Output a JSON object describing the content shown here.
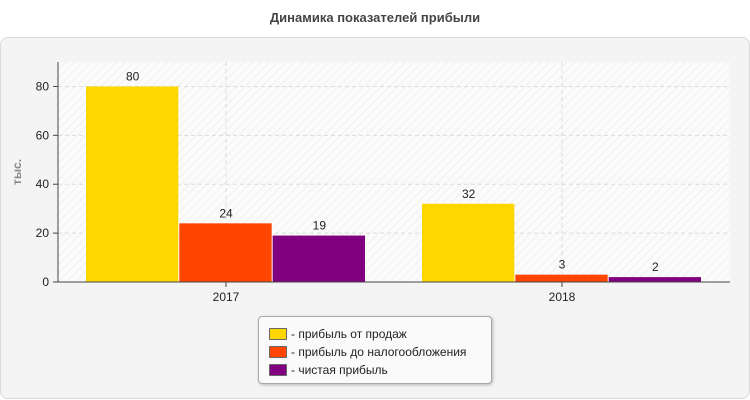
{
  "title": "Динамика показателей прибыли",
  "chart_data": {
    "type": "bar",
    "categories": [
      "2017",
      "2018"
    ],
    "series": [
      {
        "name": "прибыль от продаж",
        "values": [
          80,
          32
        ],
        "color": "#ffd700"
      },
      {
        "name": "прибыль до налогообложения",
        "values": [
          24,
          3
        ],
        "color": "#ff4500"
      },
      {
        "name": "чистая прибыль",
        "values": [
          19,
          2
        ],
        "color": "#800080"
      }
    ],
    "title": "Динамика показателей прибыли",
    "xlabel": "",
    "ylabel": "тыс.",
    "ylim": [
      0,
      90
    ],
    "yticks": [
      0,
      20,
      40,
      60,
      80
    ],
    "grid": true,
    "legend_position": "bottom-center",
    "legend_prefix": "- "
  }
}
